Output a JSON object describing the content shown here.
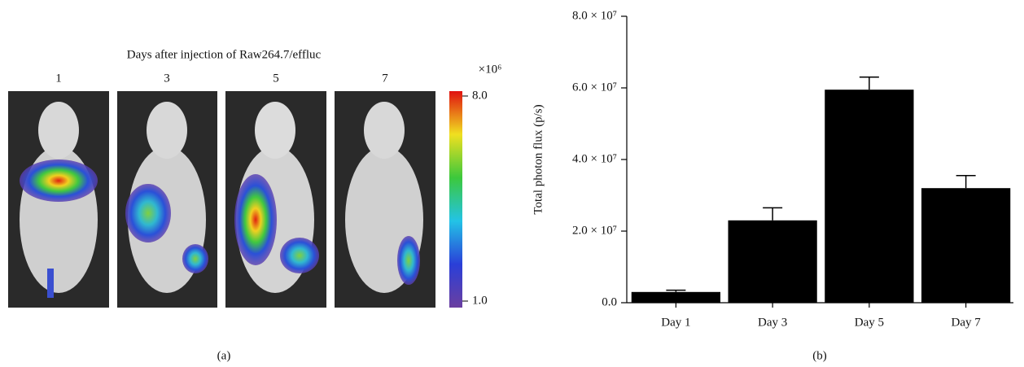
{
  "panel_a": {
    "title": "Days after injection of Raw264.7/effluc",
    "day_labels": [
      "1",
      "3",
      "5",
      "7"
    ],
    "colorbar": {
      "multiplier": "×10⁶",
      "lim": [
        1,
        8
      ],
      "ticks": [
        {
          "value": 8,
          "label": "8.0"
        },
        {
          "value": 1,
          "label": "1.0"
        }
      ]
    },
    "caption": "(a)"
  },
  "panel_b_caption": "(b)",
  "chart_data": {
    "type": "bar",
    "y_label": "Total photon flux (p/s)",
    "categories": [
      "Day 1",
      "Day 3",
      "Day 5",
      "Day 7"
    ],
    "values": [
      3000000,
      23000000,
      59500000,
      32000000
    ],
    "errors": [
      500000,
      3500000,
      3500000,
      3500000
    ],
    "color": "#000000",
    "ylim": [
      0,
      80000000
    ],
    "yticks": [
      {
        "value": 0,
        "label": "0.0"
      },
      {
        "value": 20000000,
        "label": "2.0 × 10⁷"
      },
      {
        "value": 40000000,
        "label": "4.0 × 10⁷"
      },
      {
        "value": 60000000,
        "label": "6.0 × 10⁷"
      },
      {
        "value": 80000000,
        "label": "8.0 × 10⁷"
      }
    ]
  }
}
